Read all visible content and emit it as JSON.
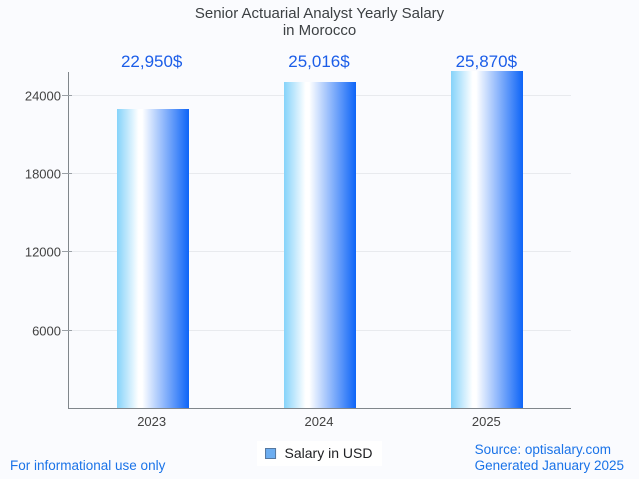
{
  "chart_data": {
    "type": "bar",
    "title_line1": "Senior Actuarial Analyst Yearly Salary",
    "title_line2": "in Morocco",
    "categories": [
      "2023",
      "2024",
      "2025"
    ],
    "values": [
      22950,
      25016,
      25870
    ],
    "value_labels": [
      "22,950$",
      "25,016$",
      "25,870$"
    ],
    "series": [
      {
        "name": "Salary in USD",
        "values": [
          22950,
          25016,
          25870
        ]
      }
    ],
    "y_ticks": [
      {
        "label": "24000",
        "value": 24000
      },
      {
        "label": "18000",
        "value": 18000
      },
      {
        "label": "12000",
        "value": 12000
      },
      {
        "label": "6000",
        "value": 6000
      }
    ],
    "ylim": [
      0,
      25760
    ],
    "grid": true,
    "legend_position": "bottom",
    "bar_gradient": [
      "#85d3fa",
      "#ffffff",
      "#0d64f7"
    ],
    "annotation_color": "#1b5de8"
  },
  "legend": {
    "label": "Salary in USD",
    "swatch_color": "#6cadf0"
  },
  "footer": {
    "left_note": "For informational use only",
    "source": "Source: optisalary.com",
    "generated": "Generated January 2025",
    "link_color": "#1a73e8"
  }
}
